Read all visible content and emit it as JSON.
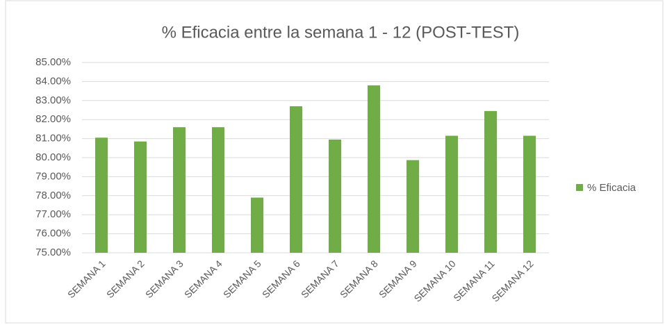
{
  "chart_data": {
    "type": "bar",
    "title": "% Eficacia entre la semana 1 - 12 (POST-TEST)",
    "categories": [
      "SEMANA 1",
      "SEMANA 2",
      "SEMANA 3",
      "SEMANA 4",
      "SEMANA 5",
      "SEMANA 6",
      "SEMANA 7",
      "SEMANA 8",
      "SEMANA 9",
      "SEMANA 10",
      "SEMANA 11",
      "SEMANA 12"
    ],
    "series": [
      {
        "name": "% Eficacia",
        "color": "#70ad47",
        "values": [
          81.05,
          80.85,
          81.6,
          81.6,
          77.9,
          82.7,
          80.95,
          83.8,
          79.87,
          81.15,
          82.45,
          81.15
        ]
      }
    ],
    "ylim": [
      75,
      85
    ],
    "yticks": [
      {
        "value": 75,
        "label": "75.00%"
      },
      {
        "value": 76,
        "label": "76.00%"
      },
      {
        "value": 77,
        "label": "77.00%"
      },
      {
        "value": 78,
        "label": "78.00%"
      },
      {
        "value": 79,
        "label": "79.00%"
      },
      {
        "value": 80,
        "label": "80.00%"
      },
      {
        "value": 81,
        "label": "81.00%"
      },
      {
        "value": 82,
        "label": "82.00%"
      },
      {
        "value": 83,
        "label": "83.00%"
      },
      {
        "value": 84,
        "label": "84.00%"
      },
      {
        "value": 85,
        "label": "85.00%"
      }
    ],
    "grid": true,
    "legend": "right"
  }
}
